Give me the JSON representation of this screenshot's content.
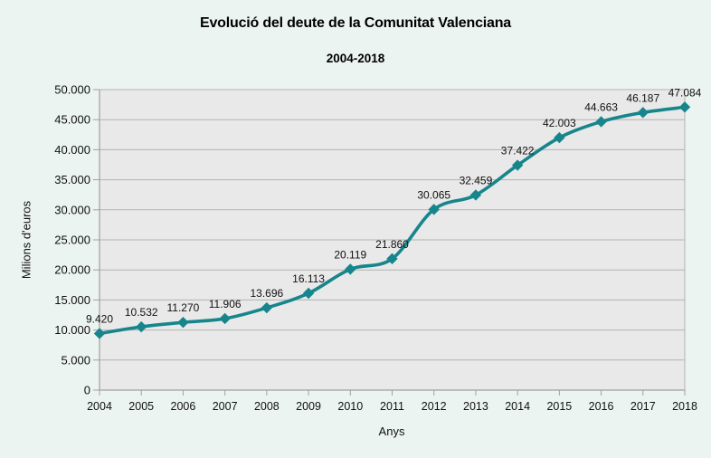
{
  "chart_data": {
    "type": "line",
    "title": "Evolució del deute de la Comunitat Valenciana",
    "subtitle": "2004-2018",
    "xlabel": "Anys",
    "ylabel": "Milions d'euros",
    "categories": [
      "2004",
      "2005",
      "2006",
      "2007",
      "2008",
      "2009",
      "2010",
      "2011",
      "2012",
      "2013",
      "2014",
      "2015",
      "2016",
      "2017",
      "2018"
    ],
    "values": [
      9420,
      10532,
      11270,
      11906,
      13696,
      16113,
      20119,
      21860,
      30065,
      32459,
      37422,
      42003,
      44663,
      46187,
      47084
    ],
    "point_labels": [
      "9.420",
      "10.532",
      "11.270",
      "11.906",
      "13.696",
      "16.113",
      "20.119",
      "21.860",
      "30.065",
      "32.459",
      "37.422",
      "42.003",
      "44.663",
      "46.187",
      "47.084"
    ],
    "ylim": [
      0,
      50000
    ],
    "ytick_step": 5000,
    "ytick_labels": [
      "0",
      "5.000",
      "10.000",
      "15.000",
      "20.000",
      "25.000",
      "30.000",
      "35.000",
      "40.000",
      "45.000",
      "50.000"
    ],
    "grid": "horizontal",
    "legend": false,
    "smoothed_line": true,
    "marker": "diamond",
    "colors": {
      "line": "#17868c",
      "plot_background": "#e9e9e9",
      "page_background": "#ecf4f1",
      "gridline": "#b3b3b3",
      "axis": "#a0a0a0",
      "text": "#111111"
    }
  }
}
